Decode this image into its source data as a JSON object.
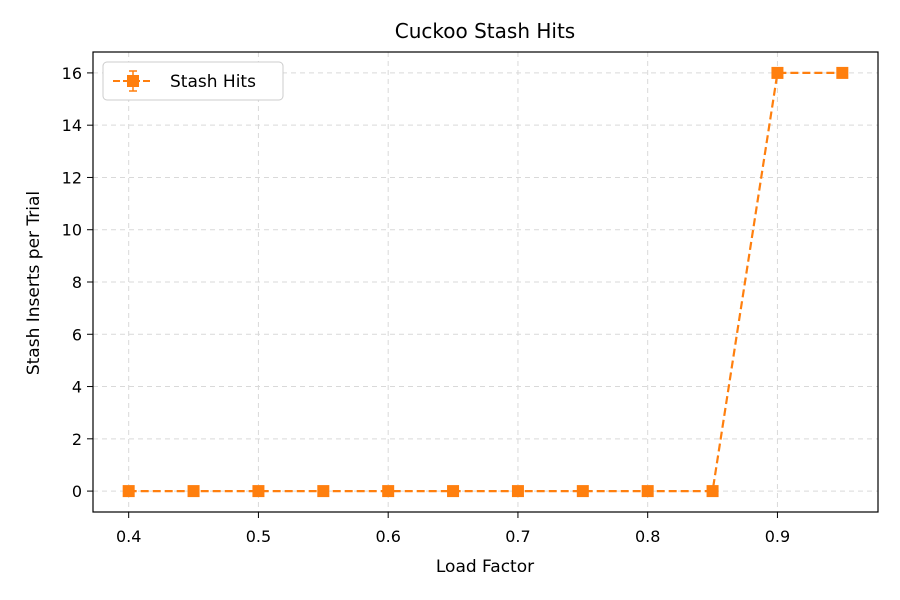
{
  "chart_data": {
    "type": "line",
    "title": "Cuckoo Stash Hits",
    "xlabel": "Load Factor",
    "ylabel": "Stash Inserts per Trial",
    "x": [
      0.4,
      0.45,
      0.5,
      0.55,
      0.6,
      0.65,
      0.7,
      0.75,
      0.8,
      0.85,
      0.9,
      0.95
    ],
    "series": [
      {
        "name": "Stash Hits",
        "values": [
          0,
          0,
          0,
          0,
          0,
          0,
          0,
          0,
          0,
          0,
          16,
          16
        ],
        "color": "#ff7f0e",
        "line_style": "dashed",
        "marker": "square"
      }
    ],
    "xlim": [
      0.3725,
      0.9775
    ],
    "ylim": [
      -0.8,
      16.8
    ],
    "xticks": [
      0.4,
      0.5,
      0.6,
      0.7,
      0.8,
      0.9
    ],
    "xtick_labels": [
      "0.4",
      "0.5",
      "0.6",
      "0.7",
      "0.8",
      "0.9"
    ],
    "yticks": [
      0,
      2,
      4,
      6,
      8,
      10,
      12,
      14,
      16
    ],
    "ytick_labels": [
      "0",
      "2",
      "4",
      "6",
      "8",
      "10",
      "12",
      "14",
      "16"
    ],
    "grid": true,
    "legend_position": "top-left"
  }
}
